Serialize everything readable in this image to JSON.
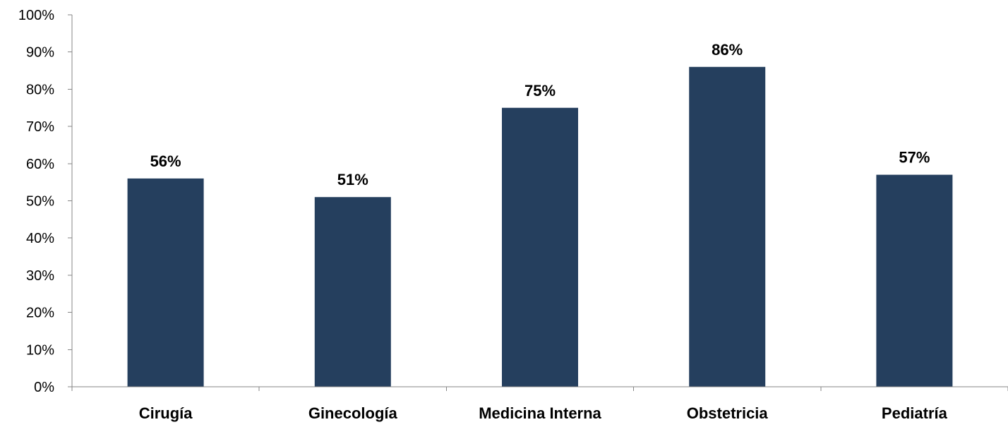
{
  "chart_data": {
    "type": "bar",
    "title": "",
    "xlabel": "",
    "ylabel": "",
    "categories": [
      "Cirugía",
      "Ginecología",
      "Medicina Interna",
      "Obstetricia",
      "Pediatría"
    ],
    "values": [
      56,
      51,
      75,
      86,
      57
    ],
    "data_labels": [
      "56%",
      "51%",
      "75%",
      "86%",
      "57%"
    ],
    "ylim": [
      0,
      100
    ],
    "yticks": [
      0,
      10,
      20,
      30,
      40,
      50,
      60,
      70,
      80,
      90,
      100
    ],
    "ytick_labels": [
      "0%",
      "10%",
      "20%",
      "30%",
      "40%",
      "50%",
      "60%",
      "70%",
      "80%",
      "90%",
      "100%"
    ],
    "grid": false,
    "legend": "none",
    "bar_color": "#253F5E"
  }
}
